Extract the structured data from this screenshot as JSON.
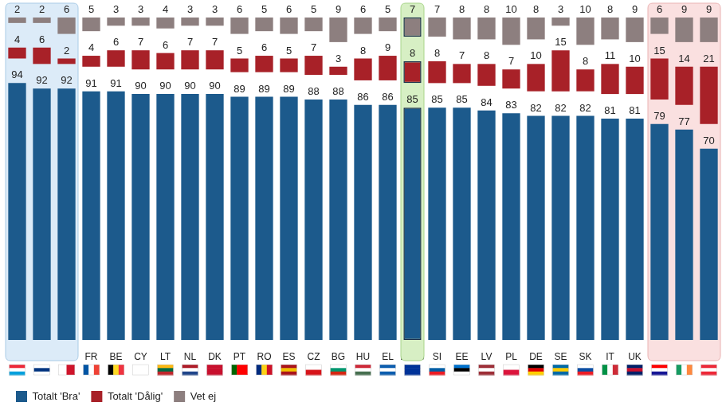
{
  "chart_data": {
    "type": "bar",
    "stacked": true,
    "data_labels": true,
    "tick_labels": "x",
    "legend": "bottom-left",
    "categories": [
      "LU",
      "FI",
      "MT",
      "FR",
      "BE",
      "CY",
      "LT",
      "NL",
      "DK",
      "PT",
      "RO",
      "ES",
      "CZ",
      "BG",
      "HU",
      "EL",
      "EU28",
      "SI",
      "EE",
      "LV",
      "PL",
      "DE",
      "SE",
      "SK",
      "IT",
      "UK",
      "HR",
      "IE",
      "AT"
    ],
    "series": [
      {
        "name": "Totalt 'Bra'",
        "color": "#1c5a8c",
        "values": [
          94,
          92,
          92,
          91,
          91,
          90,
          90,
          90,
          90,
          89,
          89,
          89,
          88,
          88,
          86,
          86,
          85,
          85,
          85,
          84,
          83,
          82,
          82,
          82,
          81,
          81,
          79,
          77,
          70
        ]
      },
      {
        "name": "Totalt 'Dålig'",
        "color": "#a82128",
        "values": [
          4,
          6,
          2,
          4,
          6,
          7,
          6,
          7,
          7,
          5,
          6,
          5,
          7,
          3,
          8,
          9,
          8,
          8,
          7,
          8,
          7,
          10,
          15,
          8,
          11,
          10,
          15,
          14,
          21
        ]
      },
      {
        "name": "Vet ej",
        "color": "#8d7f7f",
        "values": [
          2,
          2,
          6,
          5,
          3,
          3,
          4,
          3,
          3,
          6,
          5,
          6,
          5,
          9,
          6,
          5,
          7,
          7,
          8,
          8,
          10,
          8,
          3,
          10,
          8,
          9,
          6,
          9,
          9
        ]
      }
    ]
  }
}
